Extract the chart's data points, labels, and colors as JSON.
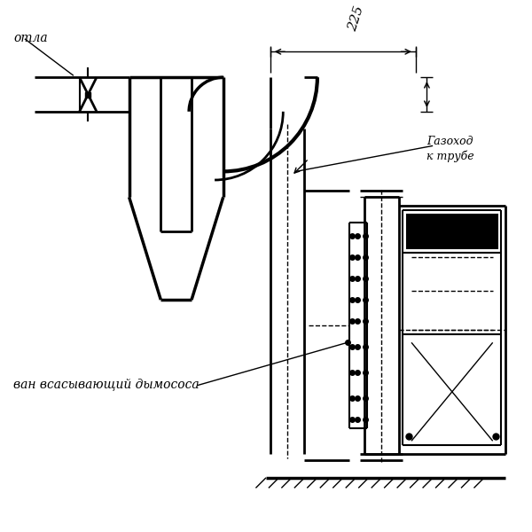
{
  "bg_color": "#ffffff",
  "line_color": "#000000",
  "label_kotla": "отла",
  "label_gazokhod_1": "Газоход",
  "label_gazokhod_2": "к трубе",
  "label_vsan": "ван всасывающий дымососа",
  "dim_225": "225"
}
